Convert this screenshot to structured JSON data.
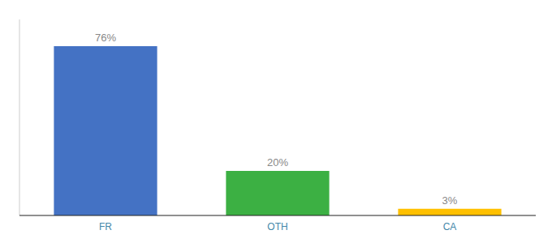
{
  "chart_data": {
    "type": "bar",
    "categories": [
      "FR",
      "OTH",
      "CA"
    ],
    "values": [
      76,
      20,
      3
    ],
    "value_labels": [
      "76%",
      "20%",
      "3%"
    ],
    "colors": [
      "#4472C4",
      "#3CB043",
      "#FFC000"
    ],
    "ylim": [
      0,
      88
    ],
    "grid": false,
    "data_labels": true,
    "tick_labels": "x"
  }
}
